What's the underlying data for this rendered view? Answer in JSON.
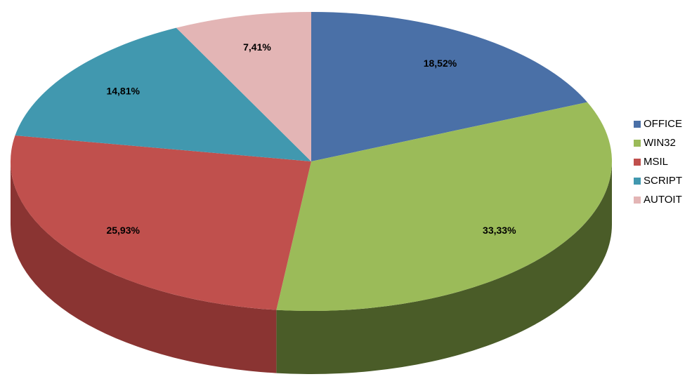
{
  "chart_data": {
    "type": "pie",
    "categories": [
      "OFFICE",
      "WIN32",
      "MSIL",
      "SCRIPT",
      "AUTOIT"
    ],
    "values": [
      18.52,
      33.33,
      25.93,
      14.81,
      7.41
    ],
    "value_labels": [
      "18,52%",
      "33,33%",
      "25,93%",
      "14,81%",
      "7,41%"
    ],
    "colors": [
      "#4a70a7",
      "#9bbb59",
      "#c0504d",
      "#4198af",
      "#e3b5b5"
    ],
    "side_colors": [
      "#2e4a72",
      "#4a5c28",
      "#8a3432",
      "#2b6a7c",
      "#a88585"
    ],
    "legend": "right"
  }
}
